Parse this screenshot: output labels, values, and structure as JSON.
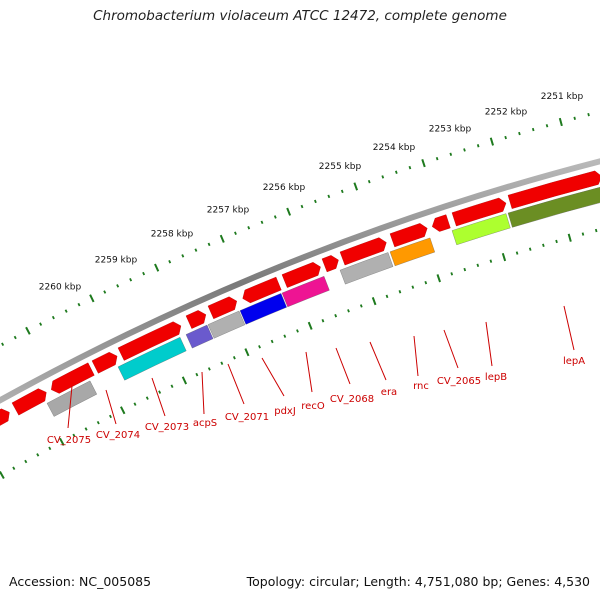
{
  "title": "Chromobacterium violaceum ATCC 12472, complete genome",
  "accession": "Accession: NC_005085",
  "genome_info": "Topology: circular; Length: 4,751,080 bp; Genes: 4,530",
  "scale_labels": [
    "2251 kbp",
    "2252 kbp",
    "2253 kbp",
    "2254 kbp",
    "2255 kbp",
    "2256 kbp",
    "2257 kbp",
    "2258 kbp",
    "2259 kbp",
    "2260 kbp"
  ],
  "gene_labels": [
    "lepA",
    "lepB",
    "CV_2065",
    "rnc",
    "era",
    "CV_2068",
    "recO",
    "pdxJ",
    "CV_2071",
    "acpS",
    "CV_2073",
    "CV_2074",
    "CV_2075"
  ],
  "colors": {
    "backbone": "#8a8a8a",
    "forward_gene": "#f00000",
    "scale_ticks": "#1e7a1e",
    "label_text": "#cc0000",
    "lepA": "#6b8e23",
    "lepB": "#adff2f",
    "rnc": "#ff9900",
    "era": "#b0b0b0",
    "recO": "#ee1493",
    "pdxJ": "#0000ee",
    "CV_2071": "#b0b0b0",
    "acpS": "#6a5acd",
    "CV_2073": "#00cccc",
    "CV_2075": "#a8a8a8"
  }
}
